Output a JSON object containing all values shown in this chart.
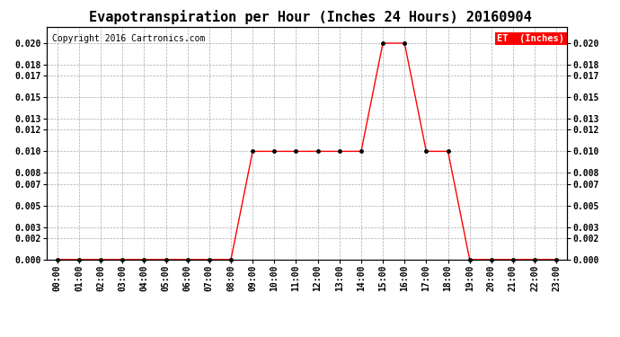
{
  "title": "Evapotranspiration per Hour (Inches 24 Hours) 20160904",
  "copyright": "Copyright 2016 Cartronics.com",
  "legend_label": "ET  (Inches)",
  "legend_bg": "#FF0000",
  "legend_fg": "#FFFFFF",
  "hours": [
    "00:00",
    "01:00",
    "02:00",
    "03:00",
    "04:00",
    "05:00",
    "06:00",
    "07:00",
    "08:00",
    "09:00",
    "10:00",
    "11:00",
    "12:00",
    "13:00",
    "14:00",
    "15:00",
    "16:00",
    "17:00",
    "18:00",
    "19:00",
    "20:00",
    "21:00",
    "22:00",
    "23:00"
  ],
  "values": [
    0.0,
    0.0,
    0.0,
    0.0,
    0.0,
    0.0,
    0.0,
    0.0,
    0.0,
    0.01,
    0.01,
    0.01,
    0.01,
    0.01,
    0.01,
    0.02,
    0.02,
    0.01,
    0.01,
    0.0,
    0.0,
    0.0,
    0.0,
    0.0
  ],
  "line_color": "#FF0000",
  "marker": "o",
  "marker_color": "#000000",
  "marker_size": 2.5,
  "ylim": [
    0.0,
    0.0215
  ],
  "yticks": [
    0.0,
    0.002,
    0.003,
    0.005,
    0.007,
    0.008,
    0.01,
    0.012,
    0.013,
    0.015,
    0.017,
    0.018,
    0.02
  ],
  "grid_color": "#AAAAAA",
  "bg_color": "#FFFFFF",
  "title_fontsize": 11,
  "copyright_fontsize": 7,
  "axis_label_fontsize": 7
}
